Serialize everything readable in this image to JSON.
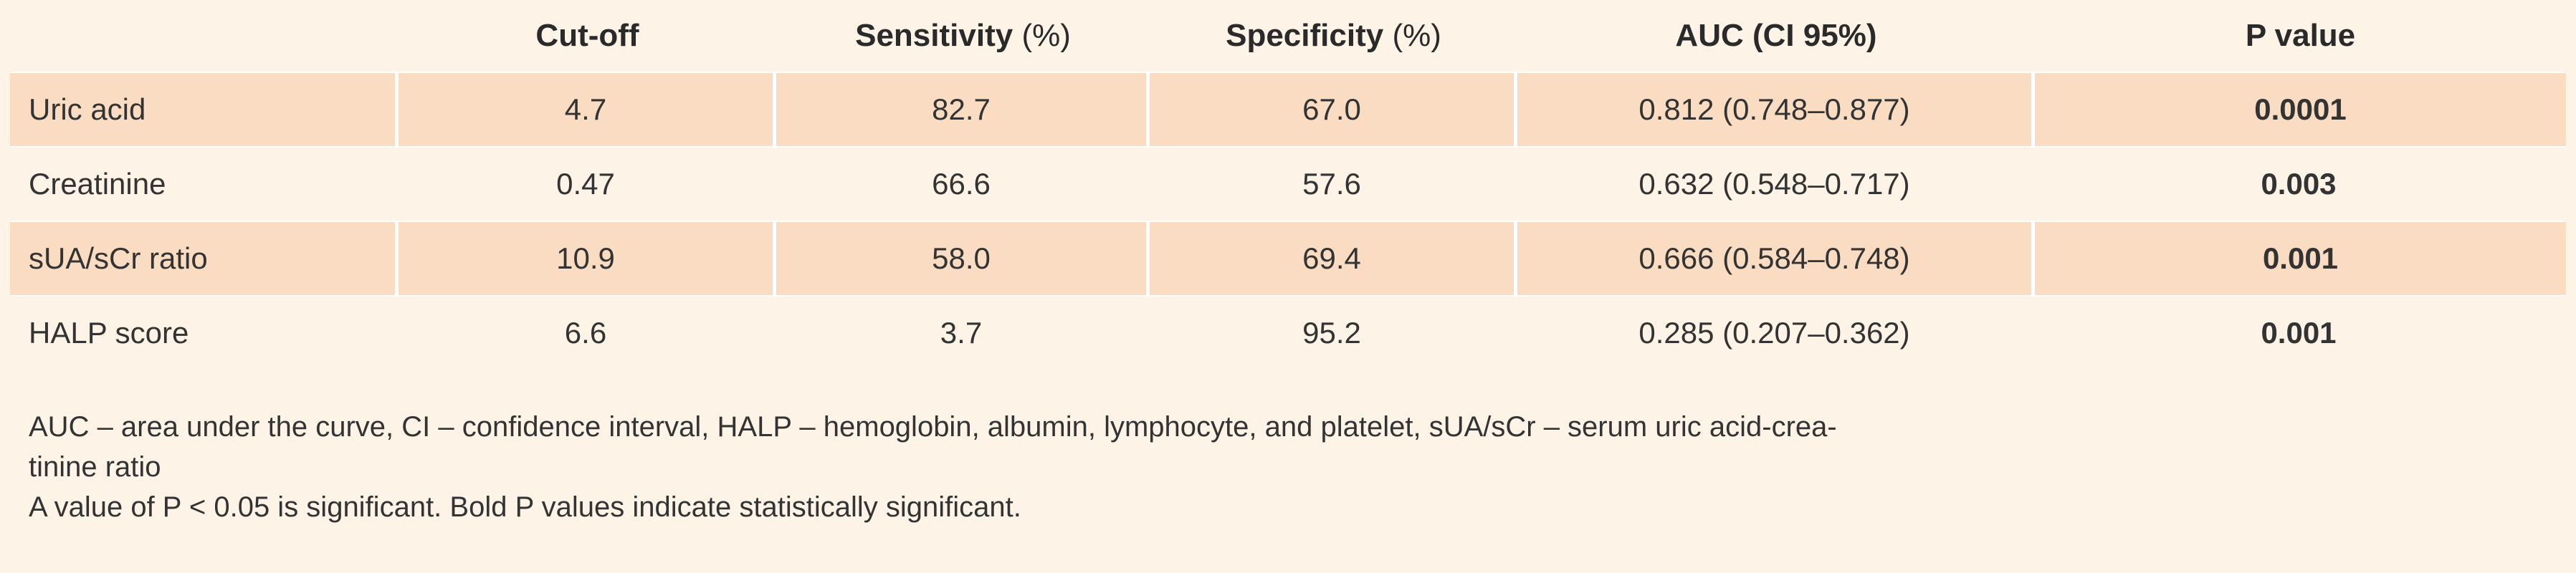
{
  "table": {
    "headers": [
      "",
      "Cut-off",
      "Sensitivity",
      "Specificity",
      "AUC (CI 95%)",
      "P value"
    ],
    "header_units": {
      "sensitivity": "(%)",
      "specificity": "(%)"
    },
    "rows": [
      {
        "label": "Uric acid",
        "cutoff": "4.7",
        "sensitivity": "82.7",
        "specificity": "67.0",
        "auc": "0.812 (0.748–0.877)",
        "p": "0.0001"
      },
      {
        "label": "Creatinine",
        "cutoff": "0.47",
        "sensitivity": "66.6",
        "specificity": "57.6",
        "auc": "0.632 (0.548–0.717)",
        "p": "0.003"
      },
      {
        "label": "sUA/sCr ratio",
        "cutoff": "10.9",
        "sensitivity": "58.0",
        "specificity": "69.4",
        "auc": "0.666 (0.584–0.748)",
        "p": "0.001"
      },
      {
        "label": "HALP score",
        "cutoff": "6.6",
        "sensitivity": "3.7",
        "specificity": "95.2",
        "auc": "0.285 (0.207–0.362)",
        "p": "0.001"
      }
    ]
  },
  "notes": {
    "abbreviations_line1": "AUC – area under the curve, CI – confidence interval, HALP – hemoglobin, albumin, lymphocyte, and platelet, sUA/sCr – serum uric acid-crea-",
    "abbreviations_line2": "tinine ratio",
    "significance": "A value of P < 0.05 is significant. Bold P values indicate statistically significant."
  },
  "colors": {
    "background": "#fdf3e6",
    "row_shade": "#f9dcc1",
    "cell_separator": "#ffffff",
    "text": "#2a2a2a"
  }
}
